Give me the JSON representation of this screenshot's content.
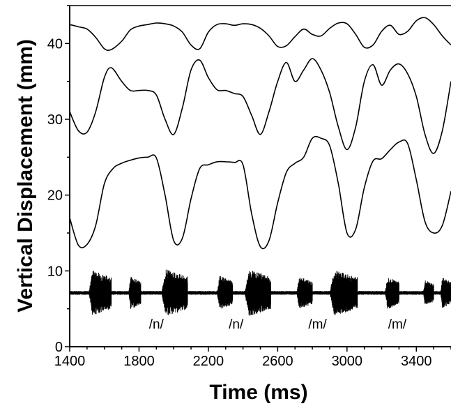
{
  "chart_data": {
    "type": "line",
    "xlabel": "Time  (ms)",
    "ylabel": "Vertical  Displacement  (mm)",
    "xlim": [
      1400,
      3600
    ],
    "ylim": [
      0,
      45
    ],
    "xticks": [
      1400,
      1800,
      2200,
      2600,
      3000,
      3400
    ],
    "yticks": [
      0,
      10,
      20,
      30,
      40
    ],
    "grid": false,
    "series": [
      {
        "x": [
          1400,
          1450,
          1500,
          1550,
          1600,
          1640,
          1700,
          1750,
          1800,
          1850,
          1900,
          1950,
          2000,
          2050,
          2100,
          2150,
          2200,
          2250,
          2300,
          2350,
          2400,
          2450,
          2500,
          2550,
          2600,
          2650,
          2700,
          2750,
          2800,
          2850,
          2900,
          2950,
          3000,
          3050,
          3100,
          3150,
          3200,
          3250,
          3300,
          3350,
          3400,
          3450,
          3500,
          3550,
          3600
        ],
        "values": [
          42.5,
          42.2,
          41.9,
          40.8,
          39.3,
          39.2,
          40.3,
          41.8,
          42.3,
          42.5,
          42.7,
          42.6,
          42.3,
          41.5,
          39.8,
          39.3,
          41.5,
          42.5,
          42.6,
          42.4,
          42.6,
          42.5,
          42.0,
          41.0,
          39.6,
          39.7,
          40.9,
          41.9,
          41.2,
          41.0,
          42.0,
          42.7,
          42.6,
          41.2,
          39.5,
          39.8,
          41.6,
          42.4,
          41.2,
          41.6,
          43.0,
          43.4,
          42.5,
          41.0,
          39.8
        ]
      },
      {
        "x": [
          1400,
          1450,
          1500,
          1550,
          1600,
          1640,
          1700,
          1750,
          1800,
          1850,
          1900,
          1950,
          2000,
          2050,
          2100,
          2150,
          2200,
          2250,
          2300,
          2350,
          2400,
          2450,
          2500,
          2550,
          2600,
          2650,
          2700,
          2750,
          2800,
          2850,
          2900,
          2950,
          3000,
          3050,
          3100,
          3150,
          3200,
          3250,
          3300,
          3350,
          3400,
          3450,
          3500,
          3550,
          3600
        ],
        "values": [
          31.0,
          28.5,
          28.3,
          31.0,
          35.5,
          36.8,
          35.0,
          33.8,
          33.8,
          33.8,
          33.2,
          30.0,
          28.0,
          31.5,
          36.5,
          37.8,
          35.5,
          33.9,
          33.8,
          33.4,
          33.0,
          30.5,
          28.0,
          31.0,
          35.0,
          37.5,
          35.0,
          36.5,
          38.0,
          36.5,
          33.5,
          29.0,
          26.0,
          29.0,
          35.0,
          37.2,
          34.5,
          36.5,
          37.3,
          36.0,
          33.0,
          28.0,
          25.5,
          28.5,
          35.0
        ]
      },
      {
        "x": [
          1400,
          1450,
          1500,
          1550,
          1600,
          1650,
          1700,
          1750,
          1800,
          1850,
          1900,
          1950,
          2000,
          2050,
          2100,
          2150,
          2200,
          2250,
          2300,
          2350,
          2400,
          2450,
          2500,
          2550,
          2600,
          2650,
          2700,
          2750,
          2800,
          2850,
          2900,
          2950,
          3000,
          3050,
          3100,
          3150,
          3200,
          3250,
          3300,
          3350,
          3400,
          3450,
          3500,
          3550,
          3600
        ],
        "values": [
          17.0,
          13.4,
          13.5,
          16.0,
          21.5,
          23.5,
          24.2,
          24.6,
          24.9,
          25.0,
          24.9,
          20.0,
          14.0,
          14.3,
          19.5,
          23.5,
          24.0,
          24.4,
          24.4,
          24.3,
          24.0,
          17.5,
          13.2,
          14.0,
          19.0,
          23.0,
          24.2,
          25.0,
          27.5,
          27.5,
          26.5,
          21.5,
          15.0,
          15.5,
          21.0,
          24.5,
          24.8,
          26.0,
          27.0,
          26.8,
          22.0,
          16.5,
          15.0,
          16.0,
          20.5
        ]
      }
    ],
    "audio_bursts": [
      {
        "start": 1510,
        "end": 1640,
        "amp": 3.2
      },
      {
        "start": 1740,
        "end": 1810,
        "amp": 2.3
      },
      {
        "start": 1930,
        "end": 2080,
        "amp": 3.3
      },
      {
        "start": 2250,
        "end": 2340,
        "amp": 2.4
      },
      {
        "start": 2410,
        "end": 2560,
        "amp": 3.3
      },
      {
        "start": 2710,
        "end": 2800,
        "amp": 2.3
      },
      {
        "start": 2900,
        "end": 3060,
        "amp": 3.2
      },
      {
        "start": 3220,
        "end": 3300,
        "amp": 2.3
      },
      {
        "start": 3440,
        "end": 3500,
        "amp": 1.8
      },
      {
        "start": 3540,
        "end": 3600,
        "amp": 2.2
      }
    ],
    "audio_baseline": 7.1,
    "annotations": [
      {
        "text": "/n/",
        "x": 1900,
        "y": 2.4
      },
      {
        "text": "/n/",
        "x": 2360,
        "y": 2.4
      },
      {
        "text": "/m/",
        "x": 2830,
        "y": 2.4
      },
      {
        "text": "/m/",
        "x": 3290,
        "y": 2.4
      }
    ]
  }
}
